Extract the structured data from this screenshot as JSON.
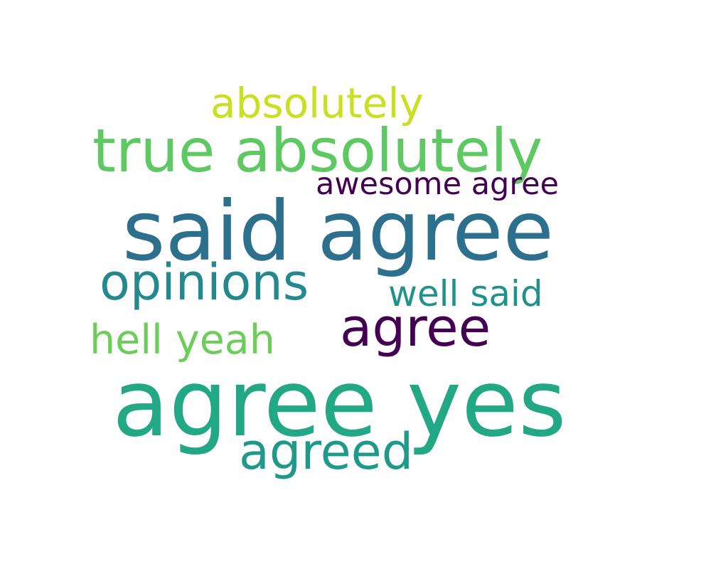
{
  "words": [
    {
      "text": "absolutely",
      "color": "#c8e020"
    },
    {
      "text": "true absolutely",
      "color": "#5ec962"
    },
    {
      "text": "awesome agree",
      "color": "#440154"
    },
    {
      "text": "said agree",
      "color": "#2d708e"
    },
    {
      "text": "opinions",
      "color": "#23898e"
    },
    {
      "text": "well said",
      "color": "#21918c"
    },
    {
      "text": "agree",
      "color": "#440154"
    },
    {
      "text": "hell yeah",
      "color": "#6ccd5a"
    },
    {
      "text": "agree yes",
      "color": "#22a884"
    },
    {
      "text": "agreed",
      "color": "#1f9a8a"
    }
  ]
}
